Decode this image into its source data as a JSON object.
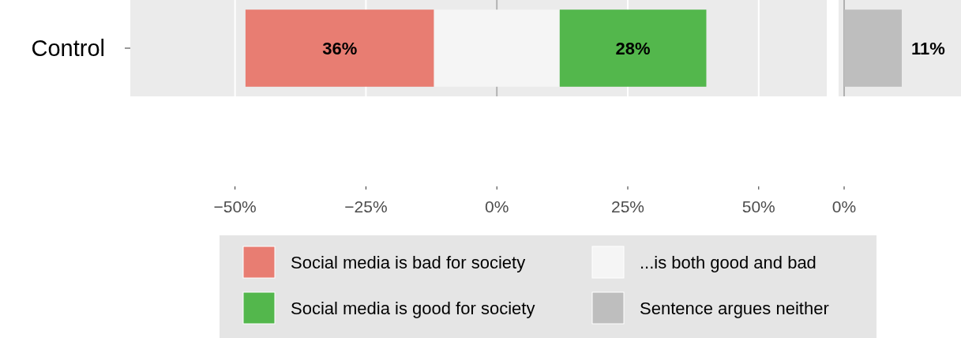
{
  "chart_data": [
    {
      "type": "bar",
      "orientation": "horizontal",
      "categories": [
        "Control"
      ],
      "xlim": [
        -70,
        63
      ],
      "xticks": [
        {
          "value": -50,
          "label": "−50%"
        },
        {
          "value": -25,
          "label": "−25%"
        },
        {
          "value": 0,
          "label": "0%"
        },
        {
          "value": 25,
          "label": "25%"
        },
        {
          "value": 50,
          "label": "50%"
        }
      ],
      "grid": "x",
      "legend": "bottom",
      "ref_lines": [
        {
          "axis": "x",
          "value": 0,
          "color": "#b0b0b0"
        }
      ],
      "series": [
        {
          "name": "Social media is bad for society",
          "color": "#e87d72",
          "base": [
            -48
          ],
          "values": [
            36
          ],
          "value_labels": [
            "36%"
          ]
        },
        {
          "name": "...is both good and bad",
          "color": "#f5f5f5",
          "base": [
            -12
          ],
          "values": [
            24
          ],
          "value_labels": [
            null
          ]
        },
        {
          "name": "Social media is good for society",
          "color": "#53b74c",
          "base": [
            12
          ],
          "values": [
            28
          ],
          "value_labels": [
            "28%"
          ]
        }
      ]
    },
    {
      "type": "bar",
      "orientation": "horizontal",
      "categories": [
        null
      ],
      "annotations": [
        "0%"
      ],
      "legend": "bottom",
      "series": [
        {
          "name": "Sentence argues neither",
          "color": "#bebebe",
          "values": [
            11
          ],
          "value_labels": [
            "11%"
          ]
        }
      ]
    }
  ]
}
